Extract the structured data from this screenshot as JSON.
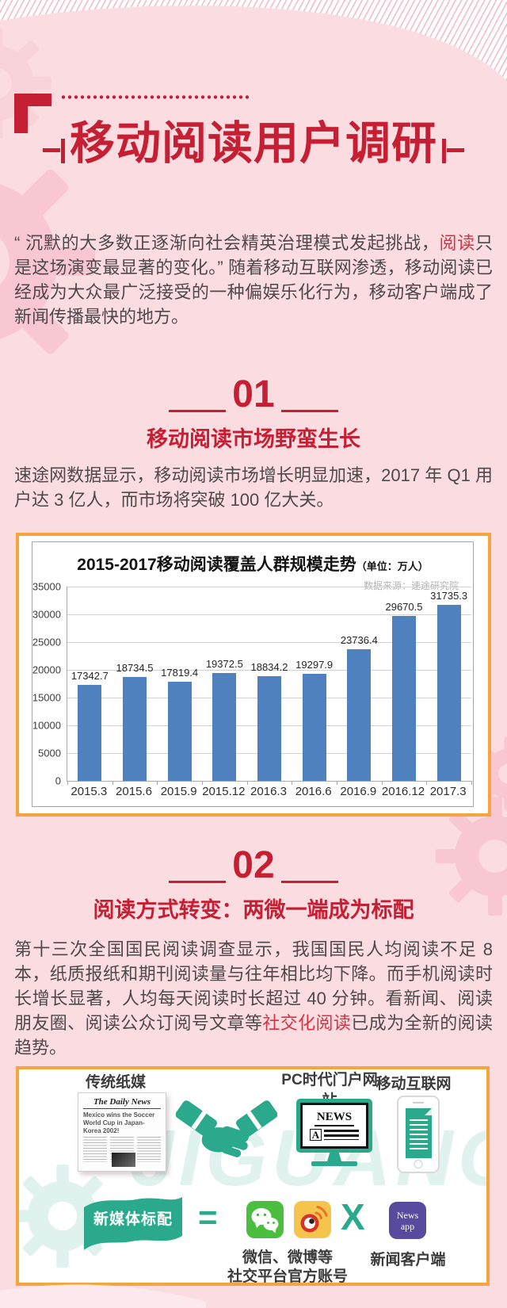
{
  "header": {
    "title": "移动阅读用户调研"
  },
  "intro": {
    "pre": "“ 沉默的大多数正逐渐向社会精英治理模式发起挑战，",
    "highlight": "阅读",
    "post": "只是这场演变最显著的变化。” 随着移动互联网渗透，移动阅读已经成为大众最广泛接受的一种偏娱乐化行为，移动客户端成了新闻传播最快的地方。"
  },
  "section1": {
    "number": "01",
    "heading": "移动阅读市场野蛮生长",
    "body": "速途网数据显示，移动阅读市场增长明显加速，2017 年 Q1 用户达 3 亿人，而市场将突破 100 亿大关。"
  },
  "chart_data": {
    "type": "bar",
    "title": "2015-2017移动阅读覆盖人群规模走势",
    "title_unit": "（单位：万人）",
    "source": "数据来源：速途研究院",
    "categories": [
      "2015.3",
      "2015.6",
      "2015.9",
      "2015.12",
      "2016.3",
      "2016.6",
      "2016.9",
      "2016.12",
      "2017.3"
    ],
    "values": [
      17342.7,
      18734.5,
      17819.4,
      19372.5,
      18834.2,
      19297.9,
      23736.4,
      29670.5,
      31735.3
    ],
    "xlabel": "",
    "ylabel": "",
    "ylim": [
      0,
      35000
    ],
    "ytick_step": 5000,
    "bar_color": "#4e81bd",
    "grid": true,
    "legend": "none"
  },
  "section2": {
    "number": "02",
    "heading": "阅读方式转变：两微一端成为标配",
    "body_pre": "第十三次全国国民阅读调查显示，我国国民人均阅读不足 8 本，纸质报纸和期刊阅读量与往年相比均下降。而手机阅读时长增长显著，人均每天阅读时长超过 40 分钟。看新闻、阅读朋友圈、阅读公众订阅号文章等",
    "body_highlight": "社交化阅读",
    "body_post": "已成为全新的阅读趋势。"
  },
  "illustration": {
    "label_traditional": "传统纸媒",
    "label_pc": "PC时代门户网站",
    "label_mobile": "移动互联网",
    "newspaper_masthead": "The Daily News",
    "newspaper_headline": "Mexico wins the Soccer World Cup in Japan-Korea 2002!",
    "monitor_screen_text": "NEWS",
    "monitor_screen_sub": "A",
    "ribbon": "新媒体标配",
    "equals_sign": "=",
    "multiply_sign": "X",
    "news_app_line1": "News",
    "news_app_line2": "app",
    "caption_social_line1": "微信、微博等",
    "caption_social_line2": "社交平台官方账号",
    "caption_news_client": "新闻客户端",
    "watermark": "JIGUANG"
  },
  "colors": {
    "background_pink": "#fbdce1",
    "accent_red": "#c51f33",
    "highlight_red": "#d9303e",
    "border_orange": "#f6a43e",
    "bar_blue": "#4e81bd",
    "brand_teal": "#2aa98c",
    "wechat_green": "#4cbe3f",
    "weibo_yellow": "#f4c44d",
    "news_app_purple": "#584a9f"
  }
}
